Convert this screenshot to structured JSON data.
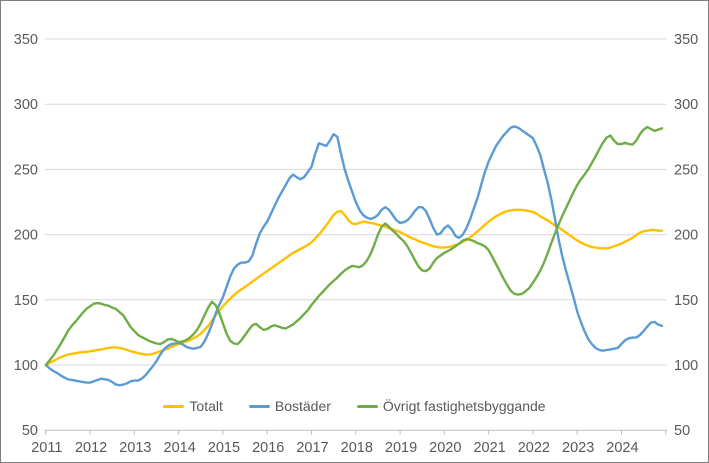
{
  "window": {
    "background": "#ffffff",
    "border_color": "#7f7f7f"
  },
  "colors": {
    "gridline": "#d9d9d9",
    "axis_line": "#bfbfbf",
    "tick_mark": "#bfbfbf",
    "label_text": "#595959",
    "series_totalt": "#FFC000",
    "series_bostader": "#5B9BD5",
    "series_ovrigt": "#70AD47"
  },
  "chart_data": {
    "type": "line",
    "title": "",
    "xlabel": "",
    "ylabel": "",
    "grid": true,
    "x_unit": "month",
    "x_start": "2011-01",
    "x_end": "2024-12",
    "x_tick_labels": [
      "2011",
      "2012",
      "2013",
      "2014",
      "2015",
      "2016",
      "2017",
      "2018",
      "2019",
      "2020",
      "2021",
      "2022",
      "2023",
      "2024"
    ],
    "y_axis": {
      "range": [
        50,
        350
      ],
      "tick_values": [
        50,
        100,
        150,
        200,
        250,
        300,
        350
      ],
      "tick_labels": [
        "50",
        "100",
        "150",
        "200",
        "250",
        "300",
        "350"
      ],
      "shown_on": "both-sides"
    },
    "legend": {
      "position": "bottom-center",
      "entries": [
        "Totalt",
        "Bostäder",
        "Övrigt fastighetsbyggande"
      ]
    },
    "series": [
      {
        "name": "Totalt",
        "color": "#FFC000",
        "values": [
          100,
          101.5,
          103,
          104.5,
          106,
          107,
          108,
          108.5,
          109,
          109.5,
          110,
          110,
          110.5,
          111,
          111.5,
          112,
          112.5,
          113,
          113.5,
          113.5,
          113,
          112.5,
          111.5,
          110.5,
          110,
          109,
          108.5,
          108,
          108,
          108.5,
          109.5,
          110.5,
          111.5,
          112.5,
          114,
          115,
          116,
          117,
          118,
          119,
          120.5,
          122,
          124,
          127,
          130,
          134,
          138,
          141.5,
          145,
          148,
          151,
          153.5,
          156,
          158,
          160,
          162,
          164,
          166,
          168,
          170,
          172,
          174,
          176,
          178,
          180,
          182,
          184,
          186,
          187.5,
          189,
          190.5,
          192,
          194,
          197,
          200,
          203.5,
          207,
          211,
          215,
          217.5,
          218,
          215,
          211,
          208.5,
          208,
          209,
          210,
          209.5,
          209,
          208.5,
          207.5,
          207,
          206,
          205,
          204,
          203,
          202,
          200.5,
          199,
          197.5,
          196.5,
          195,
          194,
          193,
          192,
          191,
          190.5,
          190,
          190,
          190.5,
          191,
          192,
          193,
          194.5,
          196,
          198,
          200,
          202.5,
          205,
          207.5,
          210,
          212,
          214,
          215.5,
          217,
          218,
          218.5,
          219,
          219,
          219,
          218.5,
          218,
          217.5,
          216,
          214,
          212.5,
          211,
          209,
          207,
          205.5,
          203.5,
          201.5,
          199.5,
          197.5,
          195.5,
          194,
          192.5,
          191.5,
          190.5,
          190,
          189.5,
          189.5,
          189.5,
          190,
          191,
          192,
          193,
          194.5,
          196,
          197.5,
          199.5,
          201.5,
          202.5,
          203,
          203.5,
          203.5,
          203,
          203
        ]
      },
      {
        "name": "Bostäder",
        "color": "#5B9BD5",
        "values": [
          100,
          97.5,
          95.5,
          94,
          92,
          90.5,
          89,
          88.5,
          88,
          87.5,
          87,
          86.5,
          86.5,
          87.5,
          88.5,
          89.5,
          89,
          88.5,
          87,
          85,
          84.5,
          85,
          86,
          87.5,
          88,
          88,
          89.5,
          92,
          95.5,
          99,
          103,
          108,
          112,
          114.5,
          116,
          116.5,
          117,
          116,
          114,
          113,
          112.5,
          113,
          114,
          118,
          124,
          131,
          139,
          146,
          152,
          160,
          168,
          174,
          177,
          178.5,
          178.5,
          179.5,
          184,
          193,
          201,
          206,
          210,
          216,
          222,
          228,
          233,
          238,
          243,
          246,
          244,
          242.5,
          244,
          248,
          252,
          262,
          270,
          269,
          268,
          272,
          277,
          275,
          262,
          250,
          241,
          233,
          225,
          219,
          215,
          213,
          212,
          213,
          215,
          219,
          221,
          219,
          215,
          211,
          209,
          209.5,
          211,
          214,
          218,
          221,
          221,
          218,
          212,
          205,
          200,
          201,
          205,
          207,
          204,
          199,
          197.5,
          200,
          205,
          212,
          220,
          228,
          238,
          248,
          256,
          262,
          268,
          272,
          276,
          279,
          282,
          283,
          282,
          280,
          278,
          276,
          274,
          268,
          261,
          250,
          240,
          227,
          212,
          196,
          183,
          172,
          162,
          152,
          141,
          133,
          126,
          120,
          116,
          113,
          111.5,
          111,
          111.5,
          112,
          112.5,
          113,
          116,
          119,
          120.5,
          121,
          121,
          123,
          126,
          129.5,
          132.5,
          133,
          131,
          130
        ]
      },
      {
        "name": "Övrigt fastighetsbyggande",
        "color": "#70AD47",
        "values": [
          100,
          103.5,
          107,
          111.5,
          116,
          121,
          126,
          130,
          133,
          136.5,
          140,
          143,
          145,
          147,
          147.5,
          147,
          146,
          145.5,
          144,
          143,
          140.5,
          138,
          133.5,
          129,
          126,
          123,
          121.5,
          120,
          118.5,
          117.5,
          116.5,
          116,
          117.5,
          119.5,
          120,
          119,
          117.5,
          118,
          119,
          121,
          123.5,
          127,
          132,
          138,
          144,
          148.5,
          146,
          140,
          132,
          124,
          118.5,
          116.5,
          116,
          119,
          123,
          127,
          130.5,
          131.5,
          129,
          127,
          127.5,
          129.5,
          130.5,
          129.5,
          128.5,
          128,
          129.5,
          131,
          133.5,
          136,
          139,
          142,
          146,
          149.5,
          153,
          156,
          159,
          162,
          164.5,
          167,
          170,
          172.5,
          174.5,
          176,
          175.5,
          175,
          176.5,
          180,
          185,
          192,
          200,
          206,
          208.5,
          206,
          203,
          200.5,
          197.5,
          195,
          191,
          186,
          180.5,
          175.5,
          172.5,
          172,
          174,
          178.5,
          182,
          184,
          186,
          187.5,
          189,
          191,
          193,
          195.5,
          196.5,
          196,
          195,
          193.5,
          192.5,
          191,
          188,
          183,
          177.5,
          172,
          166.5,
          161.5,
          157,
          154.5,
          154,
          154.5,
          156.5,
          159,
          163,
          167.5,
          172.5,
          178.5,
          185.5,
          193.5,
          201,
          208,
          214.5,
          220.5,
          226.5,
          232.5,
          238,
          242.5,
          246,
          250,
          255,
          260,
          265.5,
          270.5,
          274.5,
          276,
          272,
          269.5,
          269.5,
          270.5,
          269.5,
          269,
          272,
          277,
          280.5,
          282.5,
          281,
          279.5,
          280.5,
          281.5
        ]
      }
    ]
  }
}
